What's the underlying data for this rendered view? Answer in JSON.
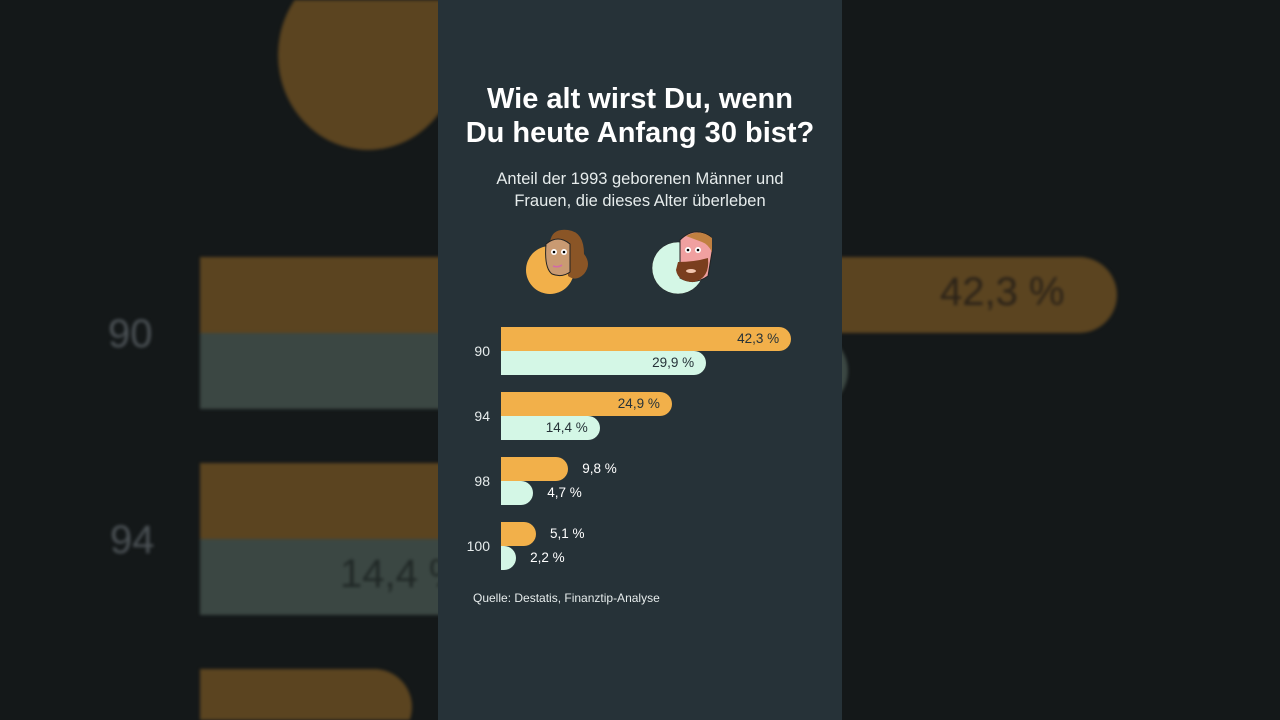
{
  "title_line1": "Wie alt wirst Du, wenn",
  "title_line2": "Du heute Anfang 30 bist?",
  "subtitle_line1": "Anteil der 1993 geborenen Männer und",
  "subtitle_line2": "Frauen, die dieses Alter überleben",
  "source": "Quelle: Destatis, Finanztip-Analyse",
  "colors": {
    "women": "#f2b04a",
    "men": "#d4f7e6",
    "background": "#263238"
  },
  "icons": [
    "woman-face-icon",
    "man-face-icon"
  ],
  "chart_data": {
    "type": "bar",
    "orientation": "horizontal",
    "categories": [
      "90",
      "94",
      "98",
      "100"
    ],
    "series": [
      {
        "values": [
          42.3,
          24.9,
          9.8,
          5.1
        ],
        "labels": [
          "42,3 %",
          "24,9 %",
          "9,8 %",
          "5,1 %"
        ],
        "color": "#f2b04a",
        "legend_icon": "woman-face-icon"
      },
      {
        "values": [
          29.9,
          14.4,
          4.7,
          2.2
        ],
        "labels": [
          "29,9 %",
          "14,4 %",
          "4,7 %",
          "2,2 %"
        ],
        "color": "#d4f7e6",
        "legend_icon": "man-face-icon"
      }
    ],
    "unit": "%",
    "grid": false
  }
}
